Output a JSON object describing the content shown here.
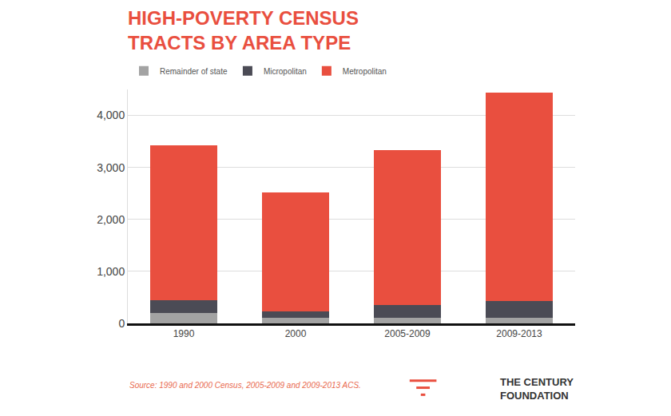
{
  "chart_data": {
    "type": "bar",
    "title": "HIGH-POVERTY CENSUS\nTRACTS BY AREA TYPE",
    "source": "Source: 1990 and 2000 Census, 2005-2009 and 2009-2013 ACS.",
    "credit": "THE CENTURY\nFOUNDATION",
    "categories": [
      "1990",
      "2000",
      "2005-2009",
      "2009-2013"
    ],
    "series": [
      {
        "name": "Remainder of state",
        "color": "#a3a3a3",
        "values": [
          200,
          100,
          100,
          100
        ]
      },
      {
        "name": "Micropolitan",
        "color": "#4b4b55",
        "values": [
          250,
          130,
          250,
          330
        ]
      },
      {
        "name": "Metropolitan",
        "color": "#e94f3f",
        "values": [
          2970,
          2290,
          2985,
          4015
        ]
      }
    ],
    "stacked": true,
    "ylim": [
      0,
      4500
    ],
    "yticks": [
      0,
      {
        "value": 1000,
        "label": "1,000"
      },
      {
        "value": 2000,
        "label": "2,000"
      },
      {
        "value": 3000,
        "label": "3,000"
      },
      {
        "value": 4000,
        "label": "4,000"
      }
    ],
    "grid": true,
    "legend": "top-left",
    "data_labels": false
  }
}
